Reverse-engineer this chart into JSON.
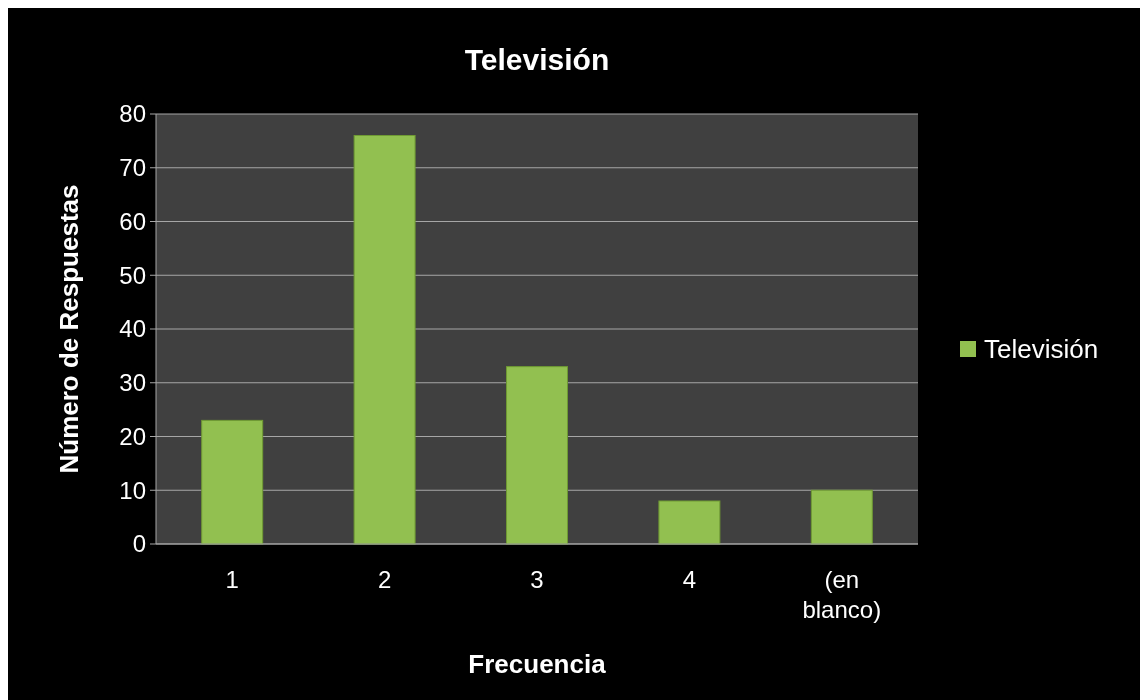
{
  "chart_data": {
    "type": "bar",
    "title": "Televisión",
    "xlabel": "Frecuencia",
    "ylabel": "Número de Respuestas",
    "categories": [
      "1",
      "2",
      "3",
      "4",
      "(en blanco)"
    ],
    "series": [
      {
        "name": "Televisión",
        "color": "#92c050",
        "values": [
          23,
          76,
          33,
          8,
          10
        ]
      }
    ],
    "ylim": [
      0,
      80
    ],
    "yticks": [
      0,
      10,
      20,
      30,
      40,
      50,
      60,
      70,
      80
    ],
    "grid": "y",
    "legend": "right"
  }
}
